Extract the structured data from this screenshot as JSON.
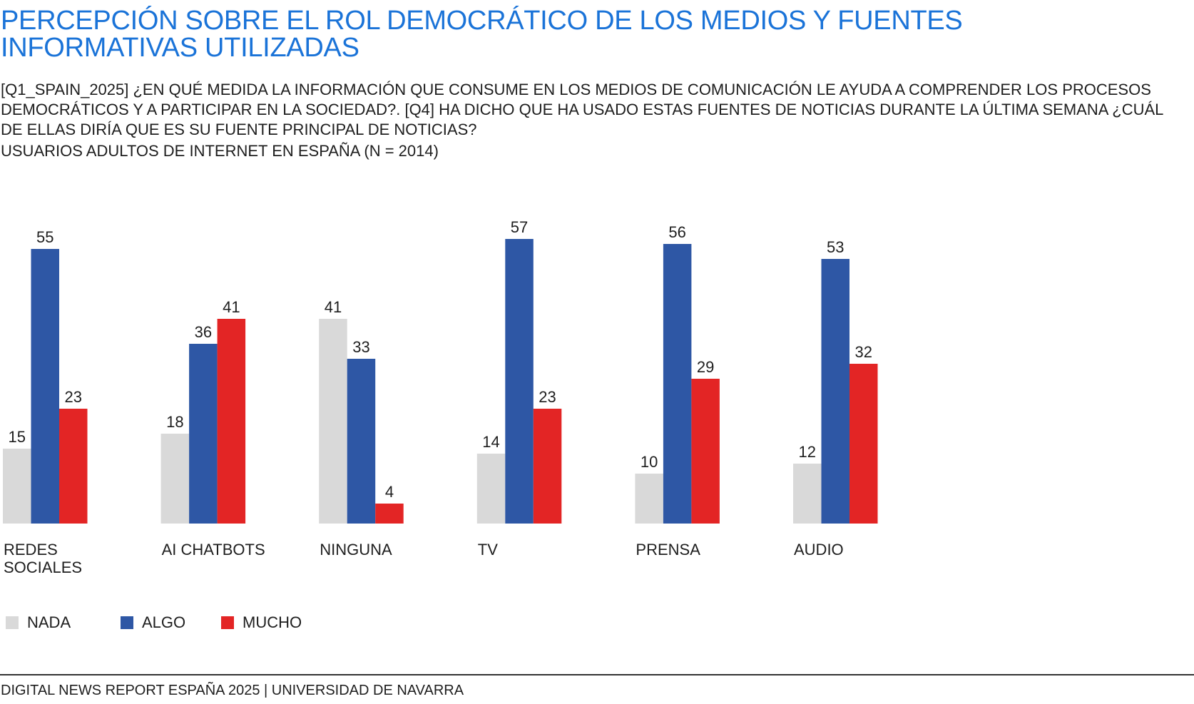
{
  "header": {
    "title": "PERCEPCIÓN SOBRE EL ROL DEMOCRÁTICO DE LOS MEDIOS Y FUENTES INFORMATIVAS UTILIZADAS",
    "question": "[Q1_SPAIN_2025] ¿EN QUÉ MEDIDA LA INFORMACIÓN QUE CONSUME EN LOS MEDIOS DE COMUNICACIÓN LE AYUDA A COMPRENDER LOS PROCESOS DEMOCRÁTICOS Y A PARTICIPAR EN LA SOCIEDAD?. [Q4] HA DICHO QUE HA USADO ESTAS FUENTES DE NOTICIAS DURANTE LA  ÚLTIMA SEMANA ¿CUÁL DE ELLAS DIRÍA QUE ES SU FUENTE PRINCIPAL DE NOTICIAS?",
    "base": "USUARIOS ADULTOS DE INTERNET EN ESPAÑA (N = 2014)"
  },
  "chart_data": {
    "type": "bar",
    "title": "PERCEPCIÓN SOBRE EL ROL DEMOCRÁTICO DE LOS MEDIOS Y FUENTES INFORMATIVAS UTILIZADAS",
    "categories": [
      "REDES SOCIALES",
      "AI CHATBOTS",
      "NINGUNA",
      "TV",
      "PRENSA",
      "AUDIO"
    ],
    "series": [
      {
        "name": "NADA",
        "color": "#d9d9d9",
        "values": [
          15,
          18,
          41,
          14,
          10,
          12
        ]
      },
      {
        "name": "ALGO",
        "color": "#2e57a5",
        "values": [
          55,
          36,
          33,
          57,
          56,
          53
        ]
      },
      {
        "name": "MUCHO",
        "color": "#e32525",
        "values": [
          23,
          41,
          4,
          23,
          29,
          32
        ]
      }
    ],
    "ylim": [
      0,
      60
    ],
    "grid": false,
    "data_labels": true,
    "legend_position": "bottom-left"
  },
  "footer": {
    "source": "DIGITAL NEWS REPORT ESPAÑA 2025 | UNIVERSIDAD DE NAVARRA"
  }
}
